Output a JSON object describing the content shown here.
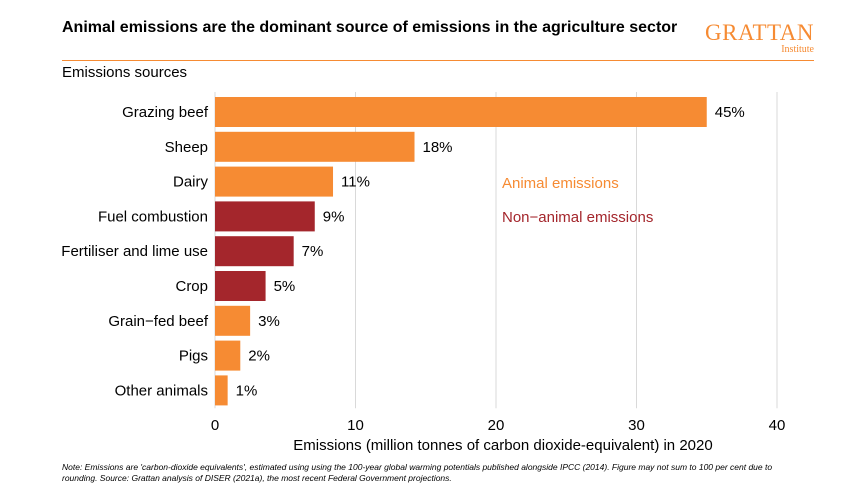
{
  "header": {
    "title": "Animal emissions are the dominant source of emissions in the agriculture sector",
    "logo_main": "GRATTAN",
    "logo_sub": "Institute",
    "subtitle": "Emissions sources"
  },
  "note": "Note: Emissions are 'carbon-dioxide equivalents', estimated using using the 100-year global warming potentials published alongside IPCC (2014). Figure may not sum to 100 per cent due to rounding. Source: Grattan analysis of DISER (2021a), the most recent Federal Government projections.",
  "colors": {
    "animal": "#f68b33",
    "non_animal": "#a4262c",
    "grid": "#d9d9d9",
    "rule": "#f68b33"
  },
  "chart_data": {
    "type": "bar",
    "orientation": "horizontal",
    "categories": [
      "Grazing beef",
      "Sheep",
      "Dairy",
      "Fuel combustion",
      "Fertiliser and lime use",
      "Crop",
      "Grain−fed beef",
      "Pigs",
      "Other animals"
    ],
    "values": [
      35.0,
      14.2,
      8.4,
      7.1,
      5.6,
      3.6,
      2.5,
      1.8,
      0.9
    ],
    "labels": [
      "45%",
      "18%",
      "11%",
      "9%",
      "7%",
      "5%",
      "3%",
      "2%",
      "1%"
    ],
    "groups": [
      "animal",
      "animal",
      "animal",
      "non_animal",
      "non_animal",
      "non_animal",
      "animal",
      "animal",
      "animal"
    ],
    "legend": [
      {
        "key": "animal",
        "label": "Animal emissions"
      },
      {
        "key": "non_animal",
        "label": "Non−animal emissions"
      }
    ],
    "xlabel": "Emissions (million tonnes of carbon dioxide-equivalent) in 2020",
    "ylabel": "",
    "xlim": [
      0,
      40
    ],
    "xticks": [
      0,
      10,
      20,
      30,
      40
    ],
    "grid": true
  }
}
